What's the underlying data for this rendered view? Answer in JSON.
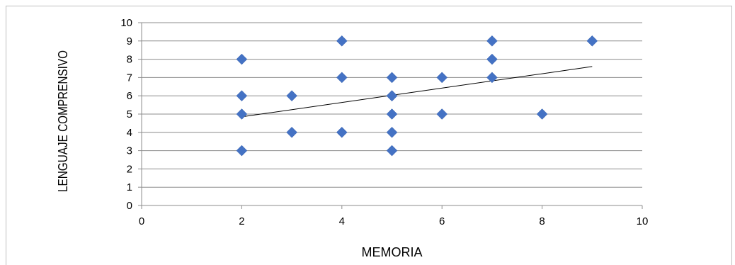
{
  "chart_data": {
    "type": "scatter",
    "title": "",
    "xlabel": "MEMORIA",
    "ylabel": "LENGUAJE COMPRENSIVO",
    "xlim": [
      0,
      10
    ],
    "ylim": [
      0,
      10
    ],
    "xticks": [
      0,
      2,
      4,
      6,
      8,
      10
    ],
    "yticks": [
      0,
      1,
      2,
      3,
      4,
      5,
      6,
      7,
      8,
      9,
      10
    ],
    "grid": "horizontal",
    "legend": "none",
    "marker": "diamond",
    "color": "#4472C4",
    "trendline_color": "#000000",
    "series": [
      {
        "x": [
          2,
          2,
          2,
          2,
          3,
          3,
          4,
          4,
          4,
          5,
          5,
          5,
          5,
          5,
          5,
          6,
          6,
          7,
          7,
          7,
          8,
          9
        ],
        "y": [
          8,
          6,
          5,
          3,
          6,
          4,
          9,
          7,
          4,
          7,
          6,
          5,
          4,
          3,
          6,
          7,
          5,
          9,
          8,
          7,
          5,
          9
        ]
      }
    ],
    "trendline": {
      "type": "linear",
      "x": [
        2,
        9
      ],
      "y": [
        4.85,
        7.6
      ]
    }
  }
}
